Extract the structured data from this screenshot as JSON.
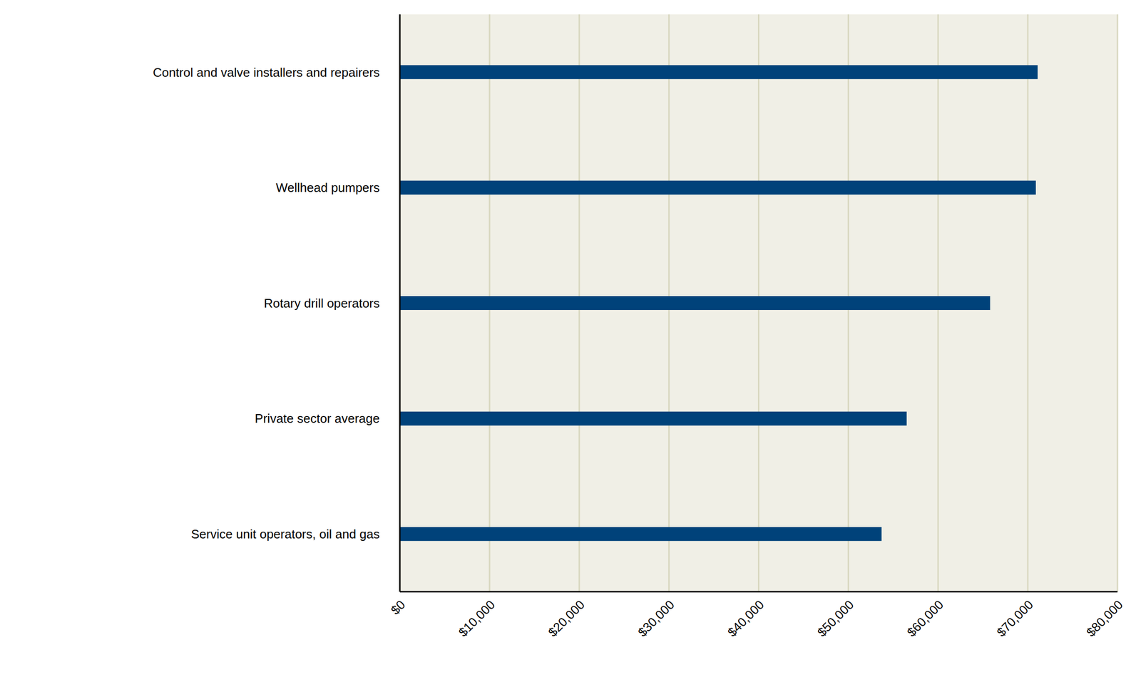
{
  "chart_data": {
    "type": "bar",
    "orientation": "horizontal",
    "categories": [
      "Control and valve installers and repairers",
      "Wellhead pumpers",
      "Rotary drill operators",
      "Private sector average",
      "Service unit operators, oil and gas"
    ],
    "values": [
      71100,
      70900,
      65800,
      56500,
      53700
    ],
    "color": "#00427a",
    "xlim": [
      0,
      80000
    ],
    "xticks": [
      {
        "value": 0,
        "label": "$0"
      },
      {
        "value": 10000,
        "label": "$10,000"
      },
      {
        "value": 20000,
        "label": "$20,000"
      },
      {
        "value": 30000,
        "label": "$30,000"
      },
      {
        "value": 40000,
        "label": "$40,000"
      },
      {
        "value": 50000,
        "label": "$50,000"
      },
      {
        "value": 60000,
        "label": "$60,000"
      },
      {
        "value": 70000,
        "label": "$70,000"
      },
      {
        "value": 80000,
        "label": "$80,000"
      }
    ],
    "grid": true
  }
}
